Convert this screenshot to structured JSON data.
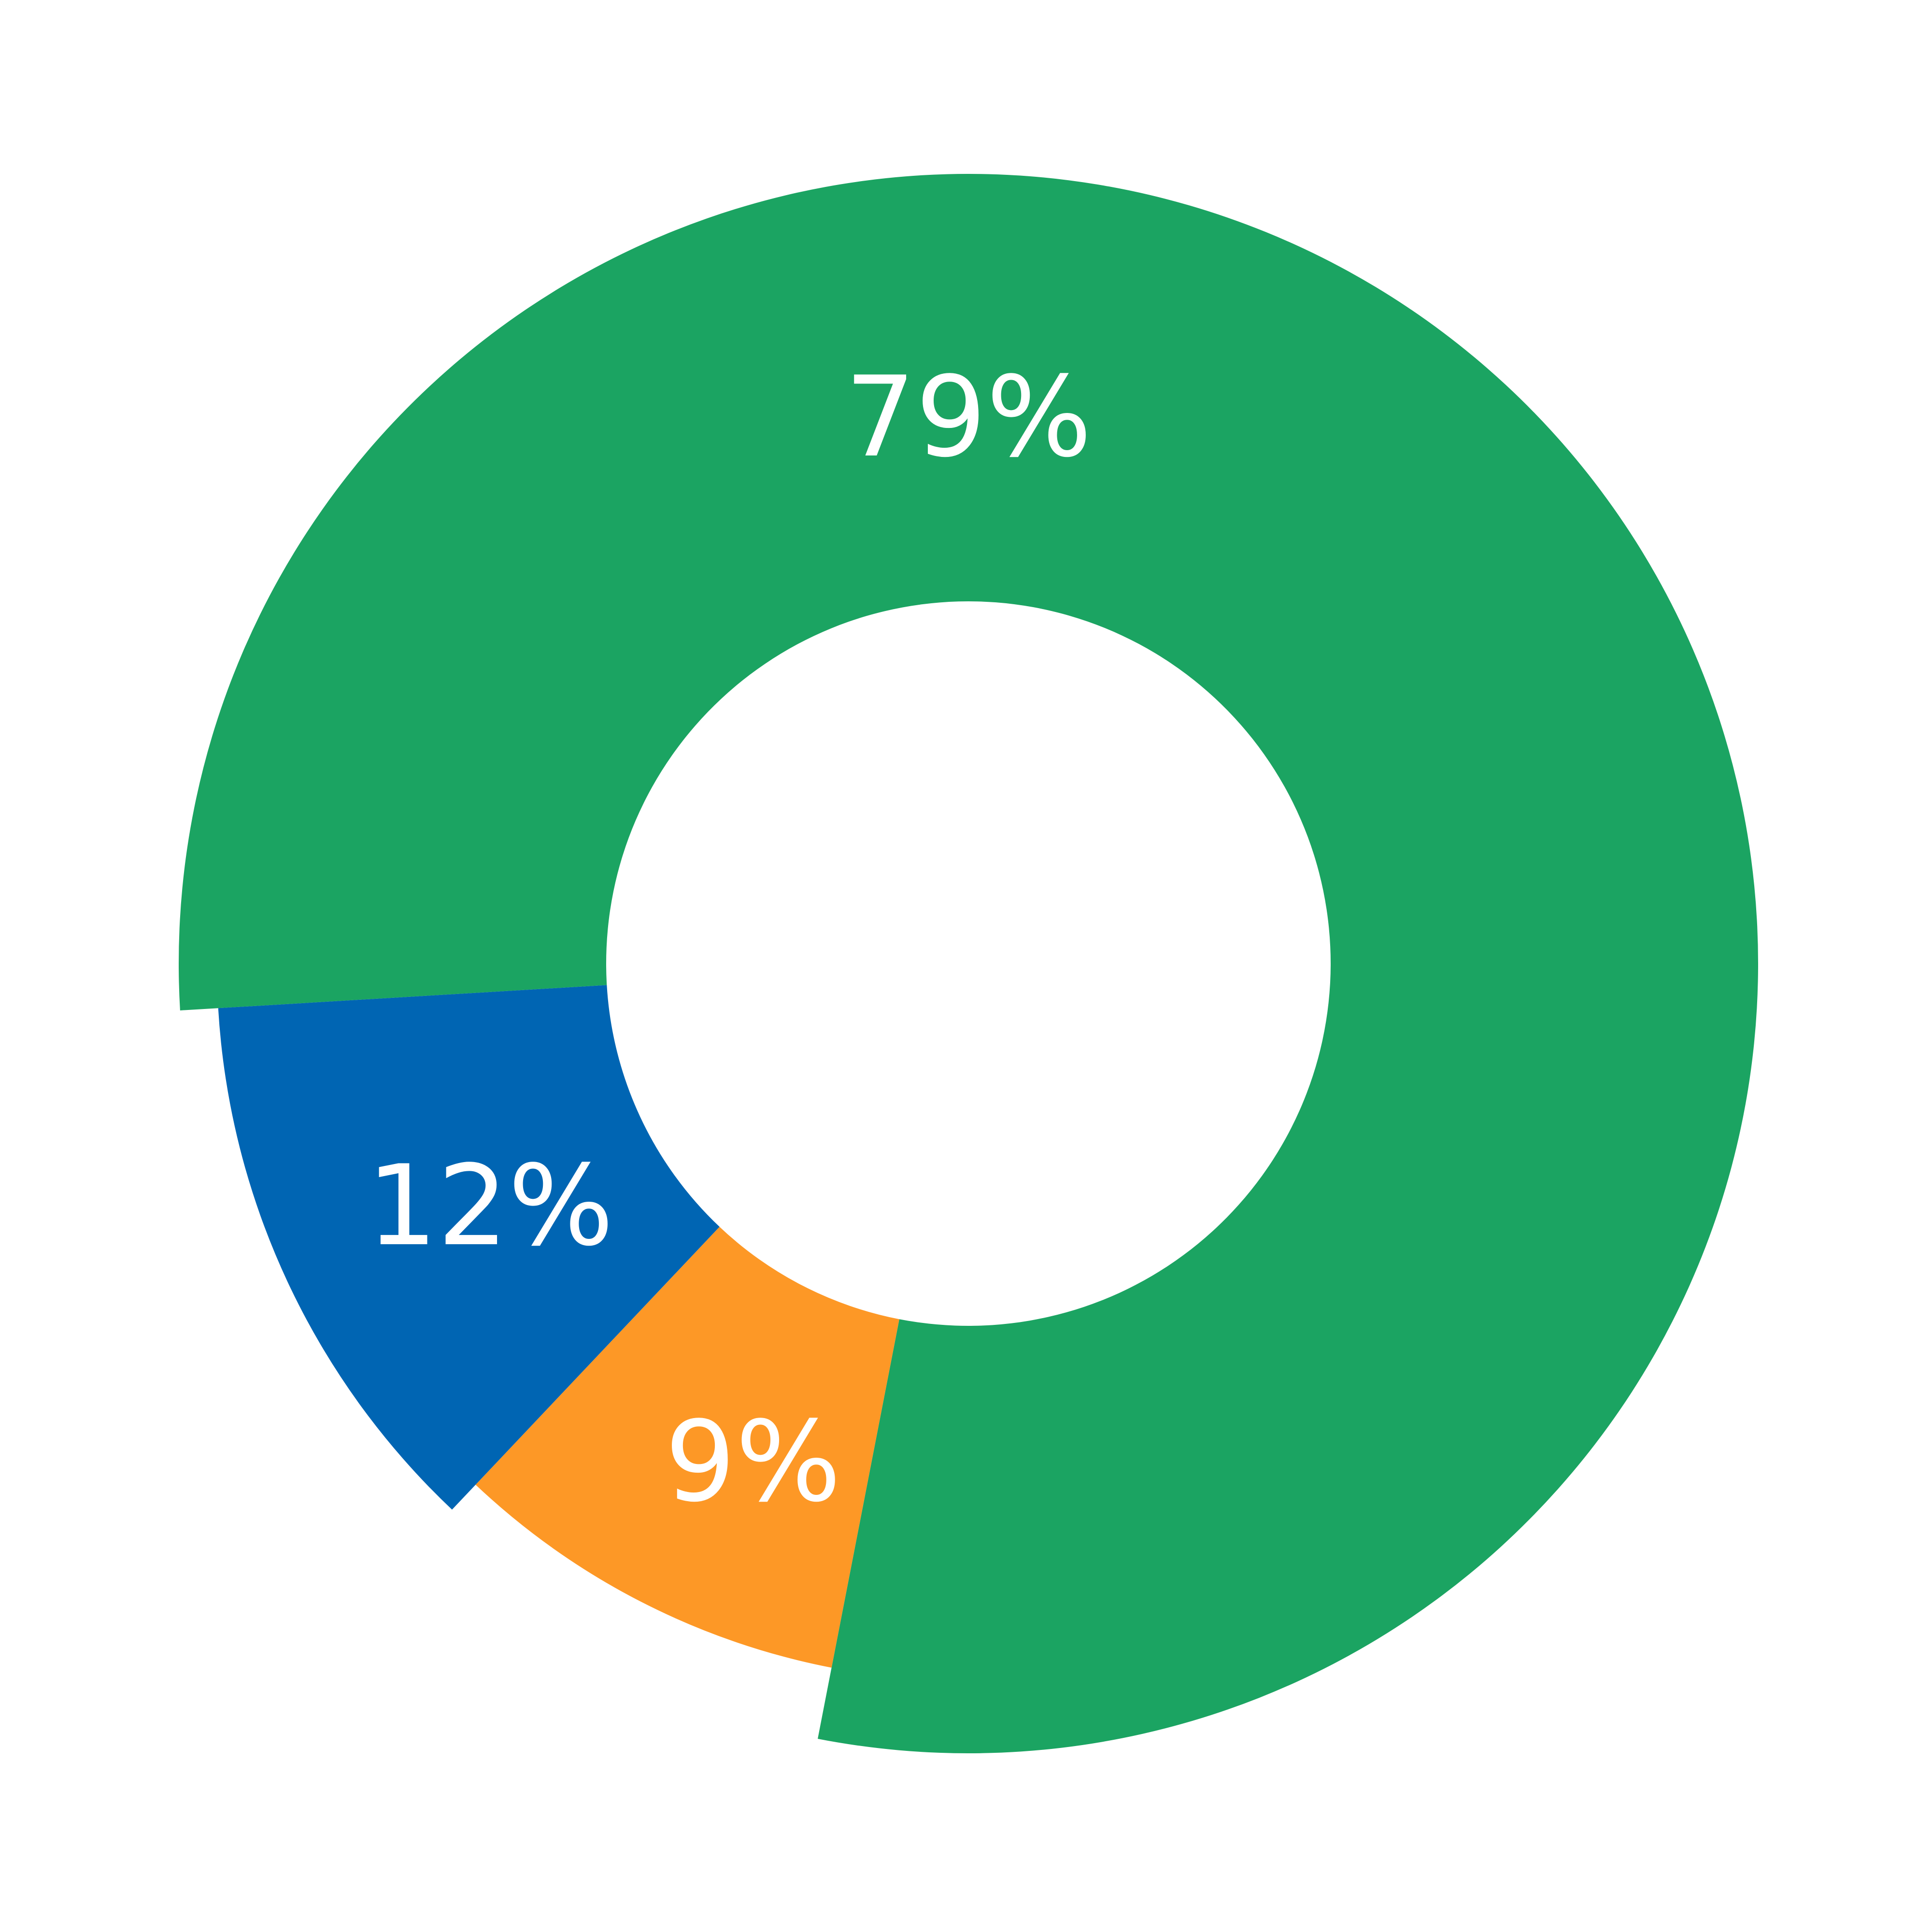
{
  "chart_data": {
    "type": "donut",
    "values": [
      79,
      9,
      12
    ],
    "value_labels": [
      "79%",
      "9%",
      "12%"
    ],
    "colors": [
      "#1ba462",
      "#fd9826",
      "#0065b3"
    ]
  }
}
